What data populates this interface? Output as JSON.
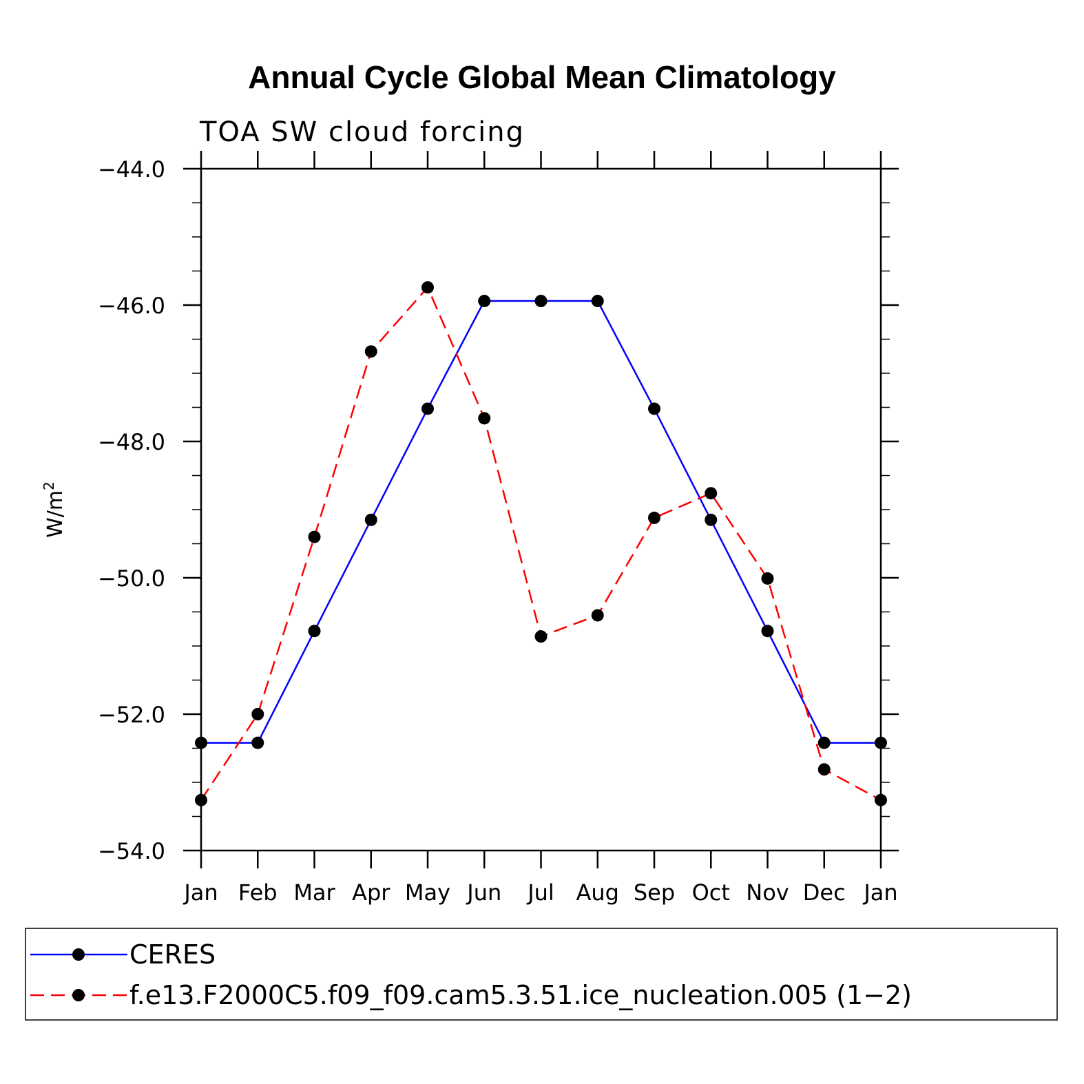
{
  "chart_data": {
    "type": "line",
    "title": "Annual Cycle Global Mean Climatology",
    "subtitle": "TOA SW cloud forcing",
    "ylabel": "W/m",
    "ylabel_sup": "2",
    "xlabel": "",
    "categories": [
      "Jan",
      "Feb",
      "Mar",
      "Apr",
      "May",
      "Jun",
      "Jul",
      "Aug",
      "Sep",
      "Oct",
      "Nov",
      "Dec",
      "Jan"
    ],
    "ylim": [
      -54.0,
      -44.0
    ],
    "yticks": [
      -44.0,
      -46.0,
      -48.0,
      -50.0,
      -52.0,
      -54.0
    ],
    "ytick_labels": [
      "−44.0",
      "−46.0",
      "−48.0",
      "−50.0",
      "−52.0",
      "−54.0"
    ],
    "series": [
      {
        "name": "CERES",
        "color": "#0000ff",
        "style": "solid",
        "values": [
          -52.42,
          -52.42,
          -50.78,
          -49.15,
          -47.52,
          -45.94,
          -45.94,
          -45.94,
          -47.52,
          -49.15,
          -50.78,
          -52.42,
          -52.42
        ]
      },
      {
        "name": "f.e13.F2000C5.f09_f09.cam5.3.51.ice_nucleation.005 (1−2)",
        "color": "#ff0000",
        "style": "dashed",
        "values": [
          -53.26,
          -52.0,
          -49.4,
          -46.68,
          -45.74,
          -47.66,
          -50.86,
          -50.55,
          -49.12,
          -48.76,
          -50.01,
          -52.81,
          -53.26
        ]
      }
    ],
    "legend_position": "bottom"
  }
}
